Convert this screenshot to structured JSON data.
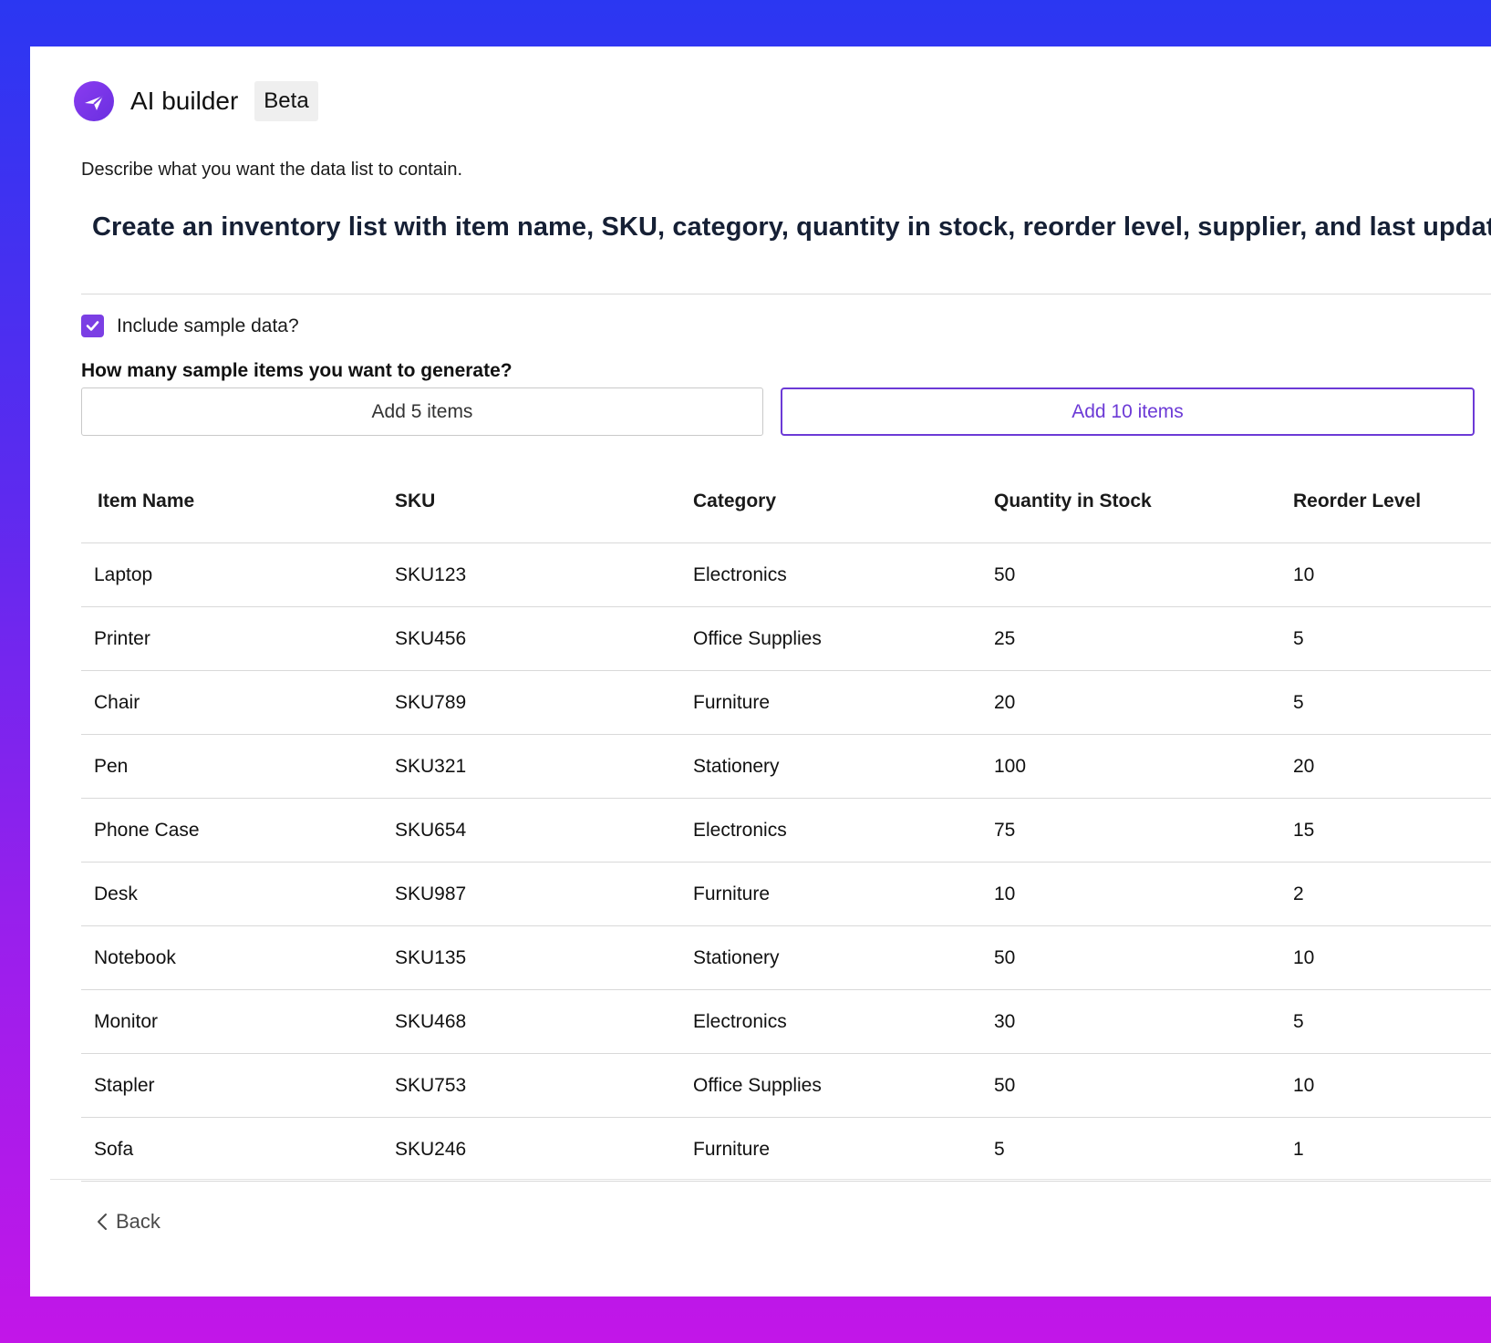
{
  "header": {
    "app_title": "AI builder",
    "badge": "Beta"
  },
  "form": {
    "describe_label": "Describe what you want the data list to contain.",
    "prompt": "Create an inventory list with item name, SKU, category, quantity in stock, reorder level, supplier, and last updated",
    "include_sample_label": "Include sample data?",
    "include_sample_checked": true,
    "question": "How many sample items you want to generate?",
    "add5_label": "Add 5 items",
    "add10_label": "Add 10 items"
  },
  "table": {
    "columns": [
      "Item Name",
      "SKU",
      "Category",
      "Quantity in Stock",
      "Reorder Level"
    ],
    "rows": [
      [
        "Laptop",
        "SKU123",
        "Electronics",
        "50",
        "10"
      ],
      [
        "Printer",
        "SKU456",
        "Office Supplies",
        "25",
        "5"
      ],
      [
        "Chair",
        "SKU789",
        "Furniture",
        "20",
        "5"
      ],
      [
        "Pen",
        "SKU321",
        "Stationery",
        "100",
        "20"
      ],
      [
        "Phone Case",
        "SKU654",
        "Electronics",
        "75",
        "15"
      ],
      [
        "Desk",
        "SKU987",
        "Furniture",
        "10",
        "2"
      ],
      [
        "Notebook",
        "SKU135",
        "Stationery",
        "50",
        "10"
      ],
      [
        "Monitor",
        "SKU468",
        "Electronics",
        "30",
        "5"
      ],
      [
        "Stapler",
        "SKU753",
        "Office Supplies",
        "50",
        "10"
      ],
      [
        "Sofa",
        "SKU246",
        "Furniture",
        "5",
        "1"
      ]
    ]
  },
  "footer": {
    "back_label": "Back"
  },
  "colors": {
    "accent": "#7b3fe4",
    "background_top": "#2b37f2",
    "background_bottom": "#c216e8"
  },
  "icons": {
    "logo": "send-arrow-icon",
    "checkbox": "check-icon",
    "back": "chevron-left-icon"
  }
}
